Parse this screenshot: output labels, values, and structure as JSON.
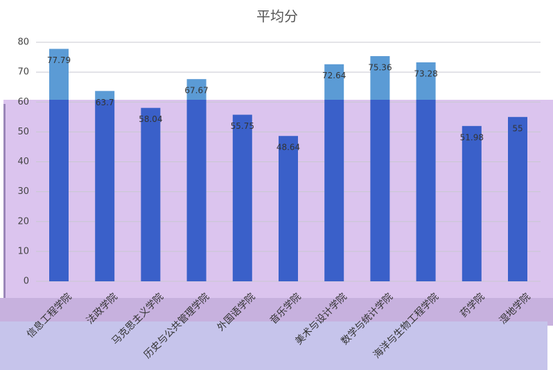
{
  "chart_data": {
    "type": "bar",
    "title": "平均分",
    "categories": [
      "信息工程学院",
      "法政学院",
      "马克思主义学院",
      "历史与公共管理学院",
      "外国语学院",
      "音乐学院",
      "美术与设计学院",
      "数学与统计学院",
      "海洋与生物工程学院",
      "药学院",
      "湿地学院"
    ],
    "values": [
      77.79,
      63.7,
      58.04,
      67.67,
      55.75,
      48.64,
      72.64,
      75.36,
      73.28,
      51.98,
      55
    ],
    "color": "#5b9bd5",
    "ylim": [
      0,
      80
    ],
    "yticks": [
      0,
      10,
      20,
      30,
      40,
      50,
      60,
      70,
      80
    ],
    "grid": true
  }
}
